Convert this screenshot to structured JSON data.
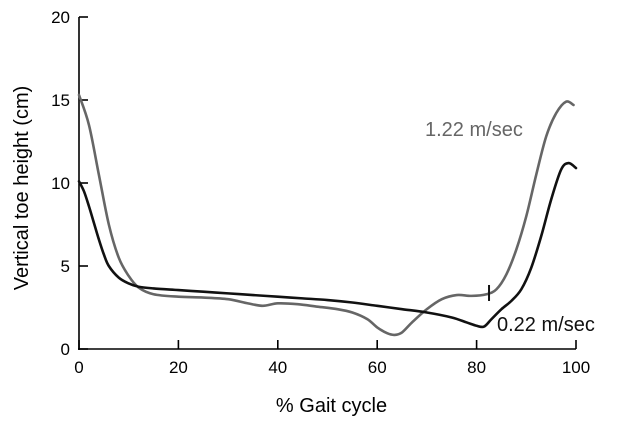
{
  "chart_data": {
    "type": "line",
    "title": "",
    "xlabel": "% Gait cycle",
    "ylabel": "Vertical toe height (cm)",
    "xlim": [
      0,
      100
    ],
    "ylim": [
      0,
      20
    ],
    "xticks": [
      0,
      20,
      40,
      60,
      80,
      100
    ],
    "yticks": [
      0,
      5,
      10,
      15,
      20
    ],
    "grid": false,
    "legend": "none",
    "series": [
      {
        "name": "1.22 m/sec",
        "color": "#666666",
        "label_position": "upper-right",
        "marker_x": 82.5,
        "x": [
          0,
          2,
          4,
          6,
          8,
          10,
          12,
          15,
          20,
          25,
          30,
          34,
          37,
          40,
          44,
          48,
          52,
          55,
          58,
          60,
          62,
          63.5,
          65,
          67,
          70,
          73,
          76,
          79,
          82,
          84,
          86,
          88,
          90,
          92,
          94,
          96,
          98,
          99.5
        ],
        "y": [
          15.3,
          13.5,
          10.5,
          7.5,
          5.5,
          4.4,
          3.7,
          3.3,
          3.15,
          3.1,
          3.0,
          2.75,
          2.6,
          2.75,
          2.7,
          2.55,
          2.4,
          2.2,
          1.8,
          1.3,
          0.95,
          0.85,
          1.0,
          1.6,
          2.4,
          3.0,
          3.25,
          3.2,
          3.3,
          3.6,
          4.5,
          6.0,
          8.0,
          10.5,
          12.8,
          14.2,
          14.9,
          14.7
        ]
      },
      {
        "name": "0.22 m/sec",
        "color": "#111111",
        "label_position": "lower-right",
        "x": [
          0,
          1,
          2,
          3,
          4,
          5,
          6,
          8,
          10,
          12,
          15,
          20,
          25,
          30,
          35,
          40,
          45,
          50,
          55,
          60,
          65,
          70,
          75,
          78,
          80,
          81.5,
          83,
          85,
          87,
          89,
          91,
          93,
          95,
          97,
          98.5,
          100
        ],
        "y": [
          10.1,
          9.5,
          8.6,
          7.6,
          6.6,
          5.7,
          5.0,
          4.3,
          3.95,
          3.75,
          3.65,
          3.55,
          3.45,
          3.35,
          3.25,
          3.15,
          3.05,
          2.95,
          2.8,
          2.6,
          2.4,
          2.2,
          1.9,
          1.6,
          1.4,
          1.35,
          1.8,
          2.4,
          2.9,
          3.6,
          4.9,
          6.8,
          9.0,
          10.8,
          11.2,
          10.9
        ]
      }
    ]
  }
}
